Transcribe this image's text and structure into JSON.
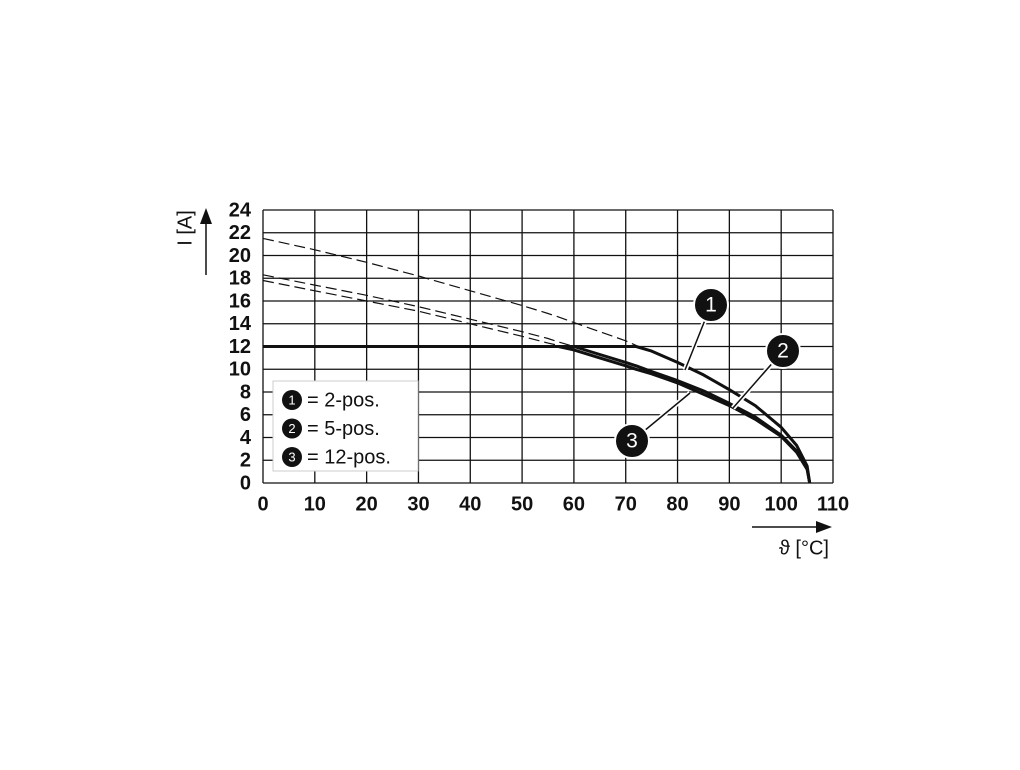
{
  "chart_data": {
    "type": "line",
    "xlabel": "ϑ [°C]",
    "ylabel": "I [A]",
    "xlim": [
      0,
      110
    ],
    "ylim": [
      0,
      24
    ],
    "xticks": [
      0,
      10,
      20,
      30,
      40,
      50,
      60,
      70,
      80,
      90,
      100,
      110
    ],
    "yticks": [
      0,
      2,
      4,
      6,
      8,
      10,
      12,
      14,
      16,
      18,
      20,
      22,
      24
    ],
    "grid": true,
    "legend": "lower left",
    "x": [
      0,
      10,
      20,
      30,
      40,
      50,
      55,
      57,
      60,
      65,
      70,
      72,
      75,
      80,
      85,
      90,
      95,
      100,
      103,
      105,
      105.5
    ],
    "series": [
      {
        "name": "= 2-pos.",
        "callout": "1",
        "color": "#111111",
        "style": "solid",
        "values": [
          12,
          12,
          12,
          12,
          12,
          12,
          12,
          12,
          12,
          12,
          12,
          12,
          11.6,
          10.6,
          9.5,
          8.2,
          6.8,
          4.9,
          3.3,
          1.5,
          0
        ]
      },
      {
        "name": "= 5-pos.",
        "callout": "2",
        "color": "#111111",
        "style": "solid",
        "values": [
          12,
          12,
          12,
          12,
          12,
          12,
          12,
          12,
          12,
          11.3,
          10.6,
          10.3,
          9.8,
          9.0,
          8.1,
          7.0,
          5.8,
          4.2,
          2.8,
          1.3,
          0
        ]
      },
      {
        "name": "= 12-pos.",
        "callout": "3",
        "color": "#111111",
        "style": "solid",
        "values": [
          12,
          12,
          12,
          12,
          12,
          12,
          12,
          12,
          11.7,
          11.0,
          10.3,
          10.0,
          9.6,
          8.8,
          7.8,
          6.8,
          5.6,
          4.1,
          2.7,
          1.2,
          0
        ]
      },
      {
        "color": "#111111",
        "style": "dashed",
        "values": [
          21.5,
          20.5,
          19.4,
          18.2,
          16.9,
          15.6,
          14.9,
          14.6,
          14.1,
          13.3,
          12.5,
          12.1,
          null,
          null,
          null,
          null,
          null,
          null,
          null,
          null,
          null
        ]
      },
      {
        "color": "#111111",
        "style": "dashed",
        "values": [
          18.3,
          17.4,
          16.5,
          15.5,
          14.4,
          13.3,
          12.7,
          12.4,
          12.0,
          null,
          null,
          null,
          null,
          null,
          null,
          null,
          null,
          null,
          null,
          null,
          null
        ]
      },
      {
        "color": "#111111",
        "style": "dashed",
        "values": [
          17.8,
          16.9,
          16.0,
          15.1,
          14.0,
          12.9,
          12.3,
          12.1,
          null,
          null,
          null,
          null,
          null,
          null,
          null,
          null,
          null,
          null,
          null,
          null,
          null
        ]
      }
    ]
  }
}
